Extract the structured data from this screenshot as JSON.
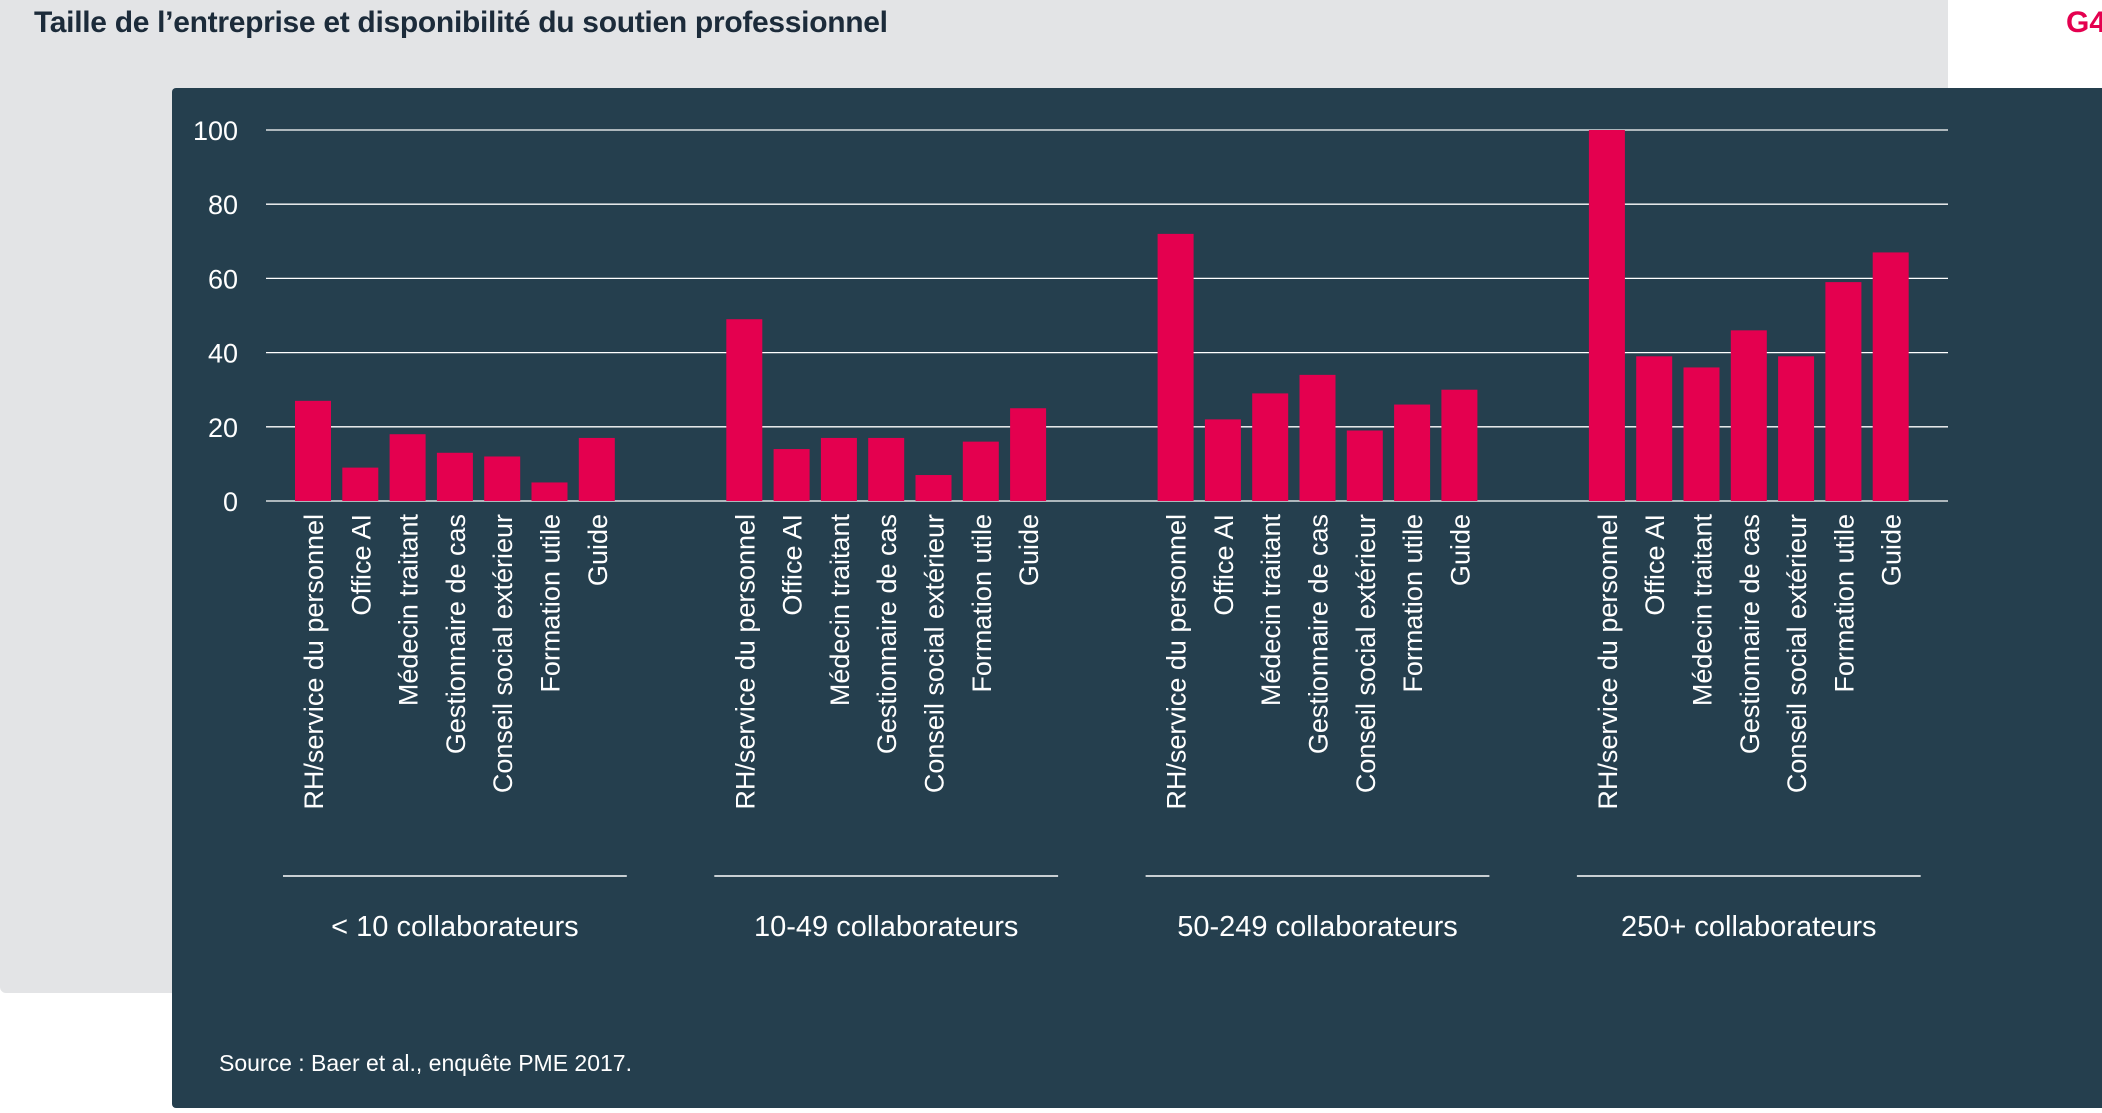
{
  "header": {
    "title": "Taille de l’entreprise et disponibilité du soutien professionnel",
    "figure_tag": "G4"
  },
  "footer": {
    "source": "Source : Baer et al., enquête PME 2017."
  },
  "colors": {
    "bar": "#e4004f",
    "panel": "#253f4e",
    "grid": "#ffffff",
    "text": "#ffffff"
  },
  "chart_data": {
    "type": "bar",
    "title": "Taille de l’entreprise et disponibilité du soutien professionnel",
    "xlabel": "",
    "ylabel": "",
    "ylim": [
      0,
      100
    ],
    "yticks": [
      0,
      20,
      40,
      60,
      80,
      100
    ],
    "grid": true,
    "legend": "none",
    "categories": [
      "RH/service du personnel",
      "Office AI",
      "Médecin traitant",
      "Gestionnaire de cas",
      "Conseil social extérieur",
      "Formation utile",
      "Guide"
    ],
    "groups": [
      {
        "label": "< 10 collaborateurs",
        "values": [
          27,
          9,
          18,
          13,
          12,
          5,
          17
        ]
      },
      {
        "label": "10-49 collaborateurs",
        "values": [
          49,
          14,
          17,
          17,
          7,
          16,
          25
        ]
      },
      {
        "label": "50-249 collaborateurs",
        "values": [
          72,
          22,
          29,
          34,
          19,
          26,
          30
        ]
      },
      {
        "label": "250+ collaborateurs",
        "values": [
          100,
          39,
          36,
          46,
          39,
          59,
          67
        ]
      }
    ]
  }
}
